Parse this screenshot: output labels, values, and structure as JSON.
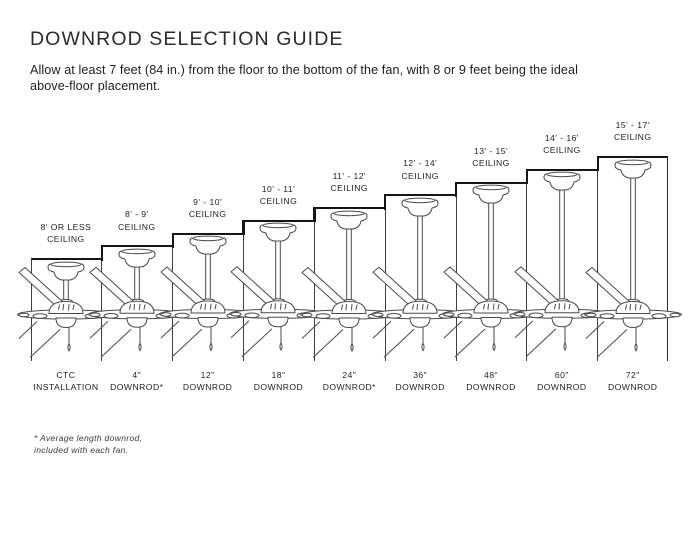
{
  "header": {
    "title": "DOWNROD SELECTION GUIDE",
    "subtitle_line1": "Allow at least 7 feet (84 in.) from the floor to the bottom of the fan, with 8 or 9 feet being the ideal",
    "subtitle_line2": "above-floor placement."
  },
  "diagram": {
    "columns": [
      {
        "ceiling_range": "8' OR LESS",
        "ceiling_word": "CEILING",
        "downrod_size": "CTC",
        "downrod_word": "INSTALLATION"
      },
      {
        "ceiling_range": "8' - 9'",
        "ceiling_word": "CEILING",
        "downrod_size": "4\"",
        "downrod_word": "DOWNROD*"
      },
      {
        "ceiling_range": "9' - 10'",
        "ceiling_word": "CEILING",
        "downrod_size": "12\"",
        "downrod_word": "DOWNROD"
      },
      {
        "ceiling_range": "10' - 11'",
        "ceiling_word": "CEILING",
        "downrod_size": "18\"",
        "downrod_word": "DOWNROD"
      },
      {
        "ceiling_range": "11' - 12'",
        "ceiling_word": "CEILING",
        "downrod_size": "24\"",
        "downrod_word": "DOWNROD*"
      },
      {
        "ceiling_range": "12' - 14'",
        "ceiling_word": "CEILING",
        "downrod_size": "36\"",
        "downrod_word": "DOWNROD"
      },
      {
        "ceiling_range": "13' - 15'",
        "ceiling_word": "CEILING",
        "downrod_size": "48\"",
        "downrod_word": "DOWNROD"
      },
      {
        "ceiling_range": "14' - 16'",
        "ceiling_word": "CEILING",
        "downrod_size": "60\"",
        "downrod_word": "DOWNROD"
      },
      {
        "ceiling_range": "15' - 17'",
        "ceiling_word": "CEILING",
        "downrod_size": "72\"",
        "downrod_word": "DOWNROD"
      }
    ]
  },
  "footnote": {
    "line1": "* Average length downrod,",
    "line2": "included with each fan."
  },
  "colors": {
    "line_art": "#4a4a4a",
    "step_outline": "#161616",
    "text": "#2b2b2b",
    "background": "#ffffff"
  }
}
